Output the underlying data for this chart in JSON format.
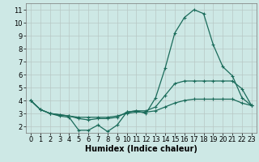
{
  "xlabel": "Humidex (Indice chaleur)",
  "bg_color": "#cde8e5",
  "grid_color": "#b8c8c4",
  "line_color": "#1a6b5a",
  "xlim": [
    -0.5,
    23.5
  ],
  "ylim": [
    1.5,
    11.5
  ],
  "xticks": [
    0,
    1,
    2,
    3,
    4,
    5,
    6,
    7,
    8,
    9,
    10,
    11,
    12,
    13,
    14,
    15,
    16,
    17,
    18,
    19,
    20,
    21,
    22,
    23
  ],
  "yticks": [
    2,
    3,
    4,
    5,
    6,
    7,
    8,
    9,
    10,
    11
  ],
  "series": [
    [
      4.0,
      3.3,
      3.0,
      2.8,
      2.7,
      1.7,
      1.7,
      2.1,
      1.6,
      2.1,
      3.1,
      3.2,
      3.0,
      4.2,
      6.5,
      9.2,
      10.4,
      11.0,
      10.7,
      8.3,
      6.6,
      5.9,
      4.2,
      3.6
    ],
    [
      4.0,
      3.3,
      3.0,
      2.9,
      2.8,
      2.6,
      2.5,
      2.6,
      2.6,
      2.7,
      3.1,
      3.2,
      3.2,
      3.5,
      4.4,
      5.3,
      5.5,
      5.5,
      5.5,
      5.5,
      5.5,
      5.5,
      4.9,
      3.6
    ],
    [
      4.0,
      3.3,
      3.0,
      2.9,
      2.8,
      2.7,
      2.7,
      2.7,
      2.7,
      2.8,
      3.0,
      3.1,
      3.1,
      3.2,
      3.5,
      3.8,
      4.0,
      4.1,
      4.1,
      4.1,
      4.1,
      4.1,
      3.8,
      3.6
    ]
  ],
  "marker": "+",
  "marker_size": 3.5,
  "linewidth": 0.9,
  "xlabel_fontsize": 7,
  "tick_fontsize": 6
}
